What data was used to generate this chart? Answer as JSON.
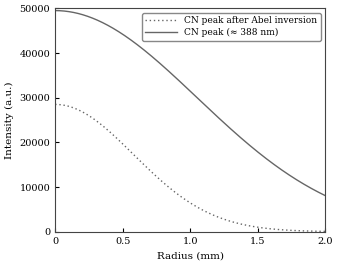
{
  "title": "",
  "xlabel": "Radius (mm)",
  "ylabel": "Intensity (a.u.)",
  "xlim": [
    0,
    2.0
  ],
  "ylim": [
    0,
    50000
  ],
  "xticks": [
    0,
    0.5,
    1.0,
    1.5,
    2.0
  ],
  "xtick_labels": [
    "0",
    "0.5",
    "1.0",
    "1.5",
    "2.0"
  ],
  "yticks": [
    0,
    10000,
    20000,
    30000,
    40000,
    50000
  ],
  "ytick_labels": [
    "0",
    "10000",
    "20000",
    "30000",
    "40000",
    "50000"
  ],
  "legend": [
    "CN peak after Abel inversion",
    "CN peak (≈ 388 nm)"
  ],
  "line_color": "#666666",
  "bg_color": "#ffffff",
  "solid_peak": 49500,
  "solid_sigma": 1.05,
  "dotted_peak": 28500,
  "dotted_sigma": 0.58
}
